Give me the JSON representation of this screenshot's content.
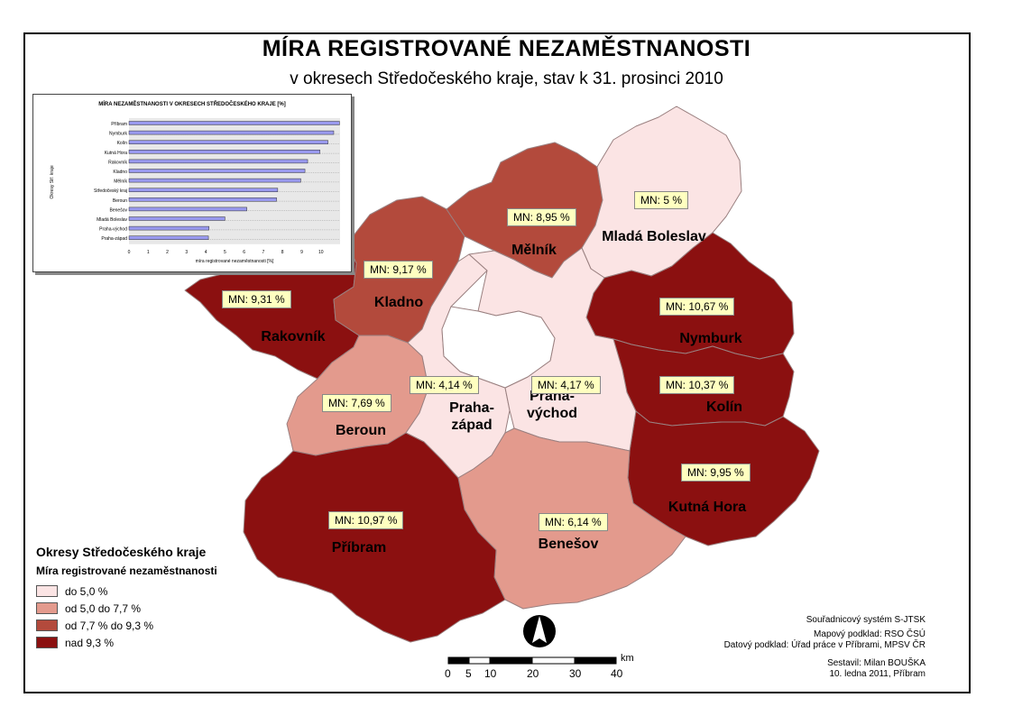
{
  "title": "MÍRA REGISTROVANÉ NEZAMĚSTNANOSTI",
  "subtitle": "v okresech Středočeského kraje, stav k 31. prosinci 2010",
  "colors": {
    "class1": "#fbe4e4",
    "class2": "#e39a8d",
    "class3": "#b34a3c",
    "class4": "#8b1010",
    "label_bg": "#ffffc0"
  },
  "districts": [
    {
      "name": "Příbram",
      "rate": 10.97,
      "label": "MN: 10,97 %",
      "class": "class4"
    },
    {
      "name": "Nymburk",
      "rate": 10.67,
      "label": "MN: 10,67 %",
      "class": "class4"
    },
    {
      "name": "Kolín",
      "rate": 10.37,
      "label": "MN: 10,37 %",
      "class": "class4"
    },
    {
      "name": "Kutná Hora",
      "rate": 9.95,
      "label": "MN: 9,95 %",
      "class": "class4"
    },
    {
      "name": "Rakovník",
      "rate": 9.31,
      "label": "MN: 9,31 %",
      "class": "class4"
    },
    {
      "name": "Kladno",
      "rate": 9.17,
      "label": "MN: 9,17 %",
      "class": "class3"
    },
    {
      "name": "Mělník",
      "rate": 8.95,
      "label": "MN: 8,95 %",
      "class": "class3"
    },
    {
      "name": "Beroun",
      "rate": 7.69,
      "label": "MN: 7,69 %",
      "class": "class2"
    },
    {
      "name": "Benešov",
      "rate": 6.14,
      "label": "MN: 6,14 %",
      "class": "class2"
    },
    {
      "name": "Mladá Boleslav",
      "rate": 5.0,
      "label": "MN: 5 %",
      "class": "class1"
    },
    {
      "name": "Praha-východ",
      "name_line1": "Praha-",
      "name_line2": "východ",
      "rate": 4.17,
      "label": "MN: 4,17 %",
      "class": "class1"
    },
    {
      "name": "Praha-západ",
      "name_line1": "Praha-",
      "name_line2": "západ",
      "rate": 4.14,
      "label": "MN: 4,14 %",
      "class": "class1"
    }
  ],
  "chart_data": {
    "type": "bar",
    "title": "MÍRA NEZAMĚSTNANOSTI V OKRESECH STŘEDOČESKÉHO KRAJE [%]",
    "xlabel": "míra registrované nezaměstnanosti [%]",
    "ylabel": "Okresy Stř. kraje",
    "categories": [
      "Příbram",
      "Nymburk",
      "Kolín",
      "Kutná Hora",
      "Rakovník",
      "Kladno",
      "Mělník",
      "Středočeský kraj",
      "Beroun",
      "Benešov",
      "Mladá Boleslav",
      "Praha-východ",
      "Praha-západ"
    ],
    "values": [
      10.97,
      10.67,
      10.37,
      9.95,
      9.31,
      9.17,
      8.95,
      7.75,
      7.69,
      6.14,
      5.0,
      4.17,
      4.14
    ],
    "xlim": [
      0,
      11
    ],
    "xticks": [
      "0",
      "1",
      "2",
      "3",
      "4",
      "5",
      "6",
      "7",
      "8",
      "9",
      "10"
    ],
    "orientation": "horizontal",
    "bar_color": "#9999ee"
  },
  "legend": {
    "title": "Okresy Středočeského kraje",
    "subtitle": "Míra registrované nezaměstnanosti",
    "items": [
      {
        "label": "do 5,0 %",
        "color": "#fbe4e4"
      },
      {
        "label": "od 5,0 do 7,7 %",
        "color": "#e39a8d"
      },
      {
        "label": "od 7,7 % do 9,3 %",
        "color": "#b34a3c"
      },
      {
        "label": "nad 9,3 %",
        "color": "#8b1010"
      }
    ]
  },
  "scale": {
    "unit": "km",
    "ticks": [
      "0",
      "5",
      "10",
      "20",
      "30",
      "40"
    ]
  },
  "credits": {
    "coord_system": "Souřadnicový systém S-JTSK",
    "map_source": "Mapový podklad:  RSO ČSÚ",
    "data_source": "Datový podklad: Úřad práce v Příbrami, MPSV ČR",
    "author": "Sestavil: Milan BOUŠKA",
    "date": "10. ledna 2011, Příbram"
  }
}
